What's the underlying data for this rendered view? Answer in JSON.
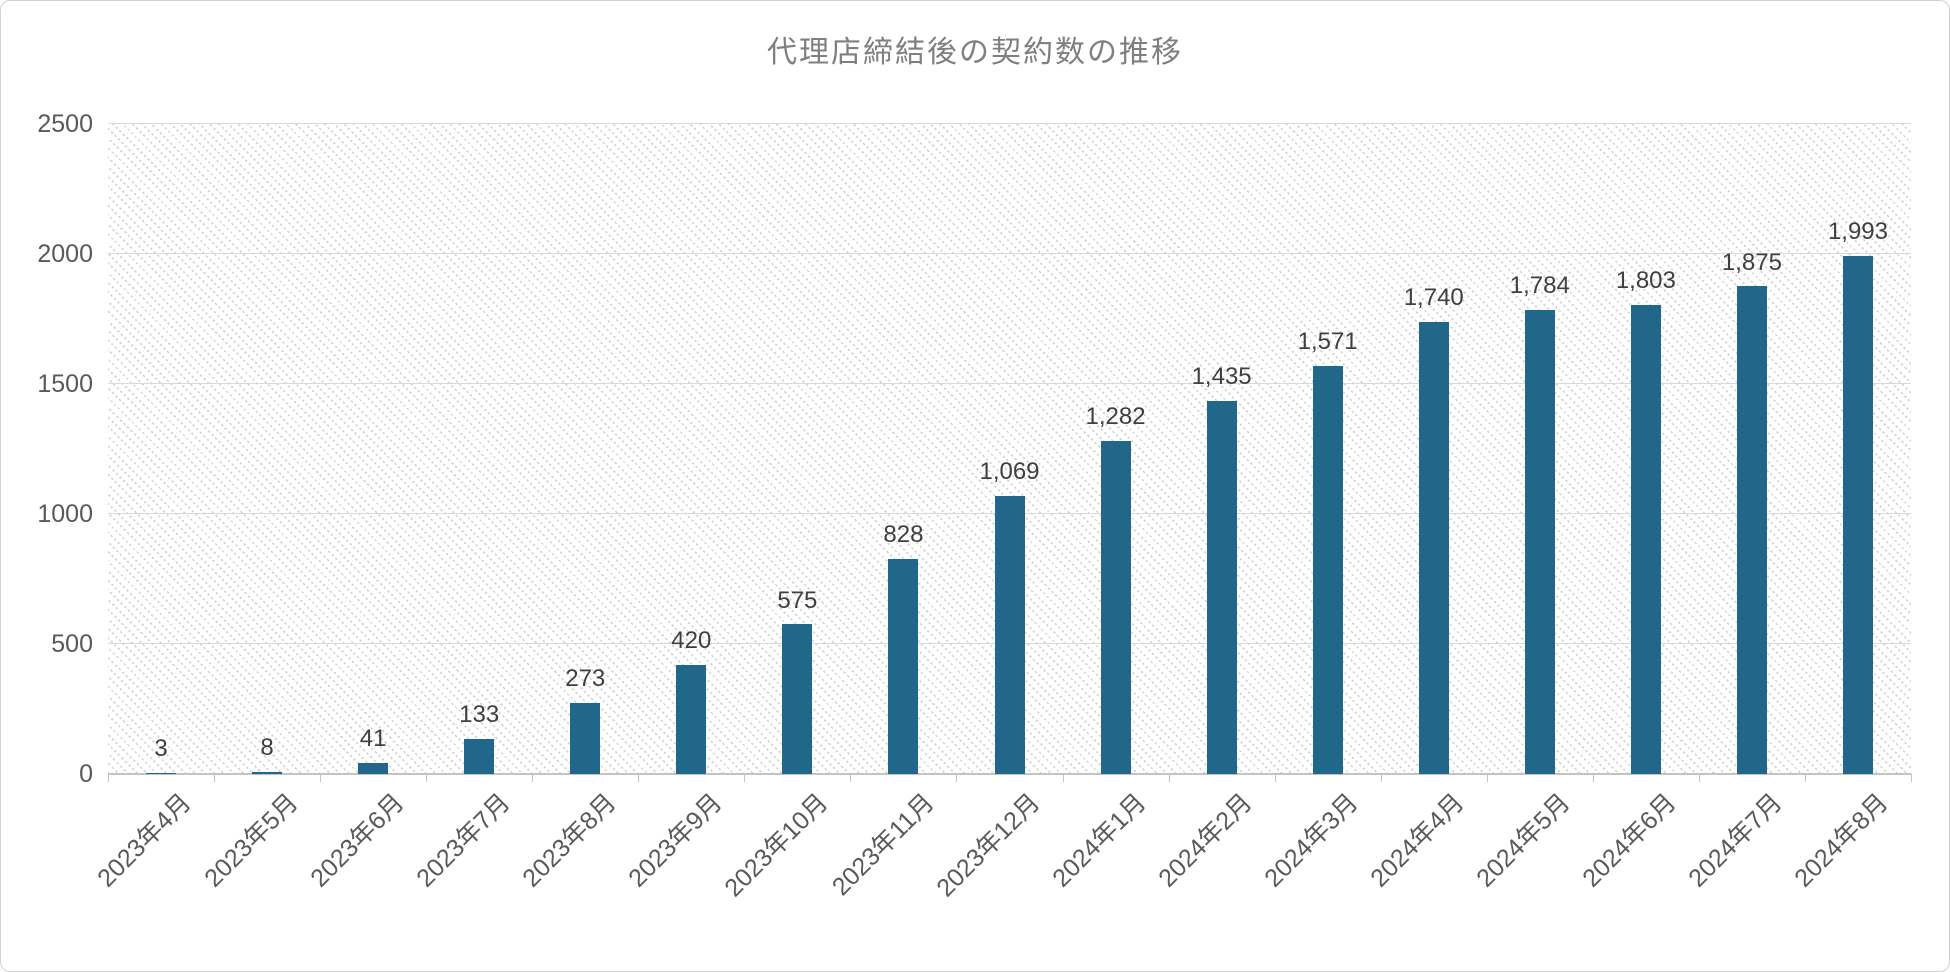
{
  "chart_data": {
    "type": "bar",
    "title": "代理店締結後の契約数の推移",
    "xlabel": "",
    "ylabel": "",
    "categories": [
      "2023年4月",
      "2023年5月",
      "2023年6月",
      "2023年7月",
      "2023年8月",
      "2023年9月",
      "2023年10月",
      "2023年11月",
      "2023年12月",
      "2024年1月",
      "2024年2月",
      "2024年3月",
      "2024年4月",
      "2024年5月",
      "2024年6月",
      "2024年7月",
      "2024年8月"
    ],
    "values": [
      3,
      8,
      41,
      133,
      273,
      420,
      575,
      828,
      1069,
      1282,
      1435,
      1571,
      1740,
      1784,
      1803,
      1875,
      1993
    ],
    "data_labels": [
      "3",
      "8",
      "41",
      "133",
      "273",
      "420",
      "575",
      "828",
      "1,069",
      "1,282",
      "1,435",
      "1,571",
      "1,740",
      "1,784",
      "1,803",
      "1,875",
      "1,993"
    ],
    "ylim": [
      0,
      2500
    ],
    "yticks": [
      0,
      500,
      1000,
      1500,
      2000,
      2500
    ],
    "ytick_labels": [
      "0",
      "500",
      "1000",
      "1500",
      "2000",
      "2500"
    ],
    "grid": true,
    "legend": "none",
    "plot_bg_pattern": "diagonal-dot-hatch"
  },
  "colors": {
    "bar": "#20678a",
    "title_text": "#7f7f7f",
    "axis_text": "#595959",
    "data_label_text": "#3f3f3f",
    "gridline": "#d9d9d9",
    "axis_line": "#c3c3c3",
    "frame_border": "#d2d2d2",
    "hatch_dot": "#d6d6d6"
  }
}
